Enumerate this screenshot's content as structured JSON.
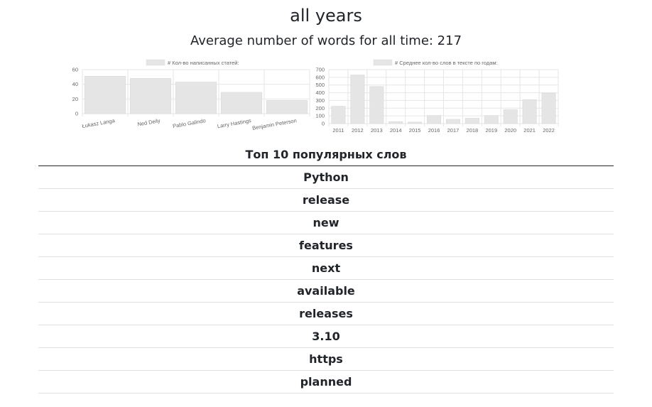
{
  "page": {
    "title": "all years",
    "average_words": "Average number of words for all time: 217"
  },
  "table": {
    "title": "Топ 10 популярных слов",
    "words": [
      "Python",
      "release",
      "new",
      "features",
      "next",
      "available",
      "releases",
      "3.10",
      "https",
      "planned"
    ]
  },
  "colors": {
    "bar_fill": "#e5e5e5",
    "grid": "#e6e6e6"
  },
  "chart_data": [
    {
      "type": "bar",
      "legend": "# Кол-во написанных статей:",
      "legend_position": "top",
      "categories": [
        "Łukasz Langa",
        "Ned Deily",
        "Pablo Galindo",
        "Larry Hastings",
        "Benjamin Peterson"
      ],
      "values": [
        51,
        48,
        43,
        29,
        18
      ],
      "ylim": [
        0,
        60
      ],
      "yticks": [
        0,
        20,
        40,
        60
      ],
      "grid": true
    },
    {
      "type": "bar",
      "legend": "# Среднее кол-во слов в тексте по годам:",
      "legend_position": "top",
      "categories": [
        "2011",
        "2012",
        "2013",
        "2014",
        "2015",
        "2016",
        "2017",
        "2018",
        "2019",
        "2020",
        "2021",
        "2022"
      ],
      "values": [
        225,
        630,
        480,
        25,
        20,
        105,
        55,
        70,
        105,
        180,
        310,
        395
      ],
      "ylim": [
        0,
        700
      ],
      "yticks": [
        0,
        100,
        200,
        300,
        400,
        500,
        600,
        700
      ],
      "grid": true
    }
  ]
}
